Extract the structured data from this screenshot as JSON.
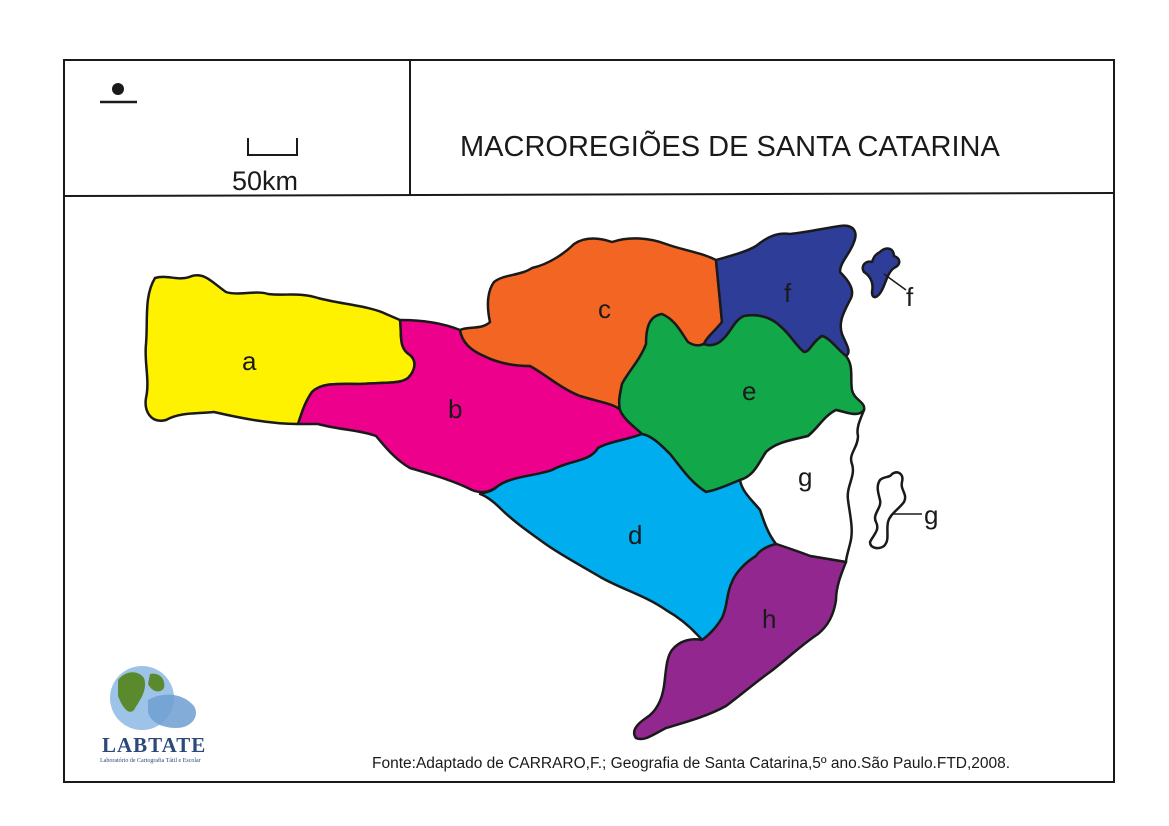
{
  "title": "MACROREGIÕES DE SANTA CATARINA",
  "scale": {
    "label": "50km"
  },
  "north_symbol": "braille-north-dot",
  "source": "Fonte:Adaptado de CARRARO,F.; Geografia de Santa Catarina,5º ano.São Paulo.FTD,2008.",
  "logo": {
    "name": "LABTATE",
    "subtitle": "Laboratório de Cartografia Tátil e Escolar"
  },
  "regions": [
    {
      "id": "a",
      "label": "a",
      "color": "#fff200"
    },
    {
      "id": "b",
      "label": "b",
      "color": "#ec008c"
    },
    {
      "id": "c",
      "label": "c",
      "color": "#f26522"
    },
    {
      "id": "d",
      "label": "d",
      "color": "#00aeef"
    },
    {
      "id": "e",
      "label": "e",
      "color": "#12a84a"
    },
    {
      "id": "f",
      "label": "f",
      "color": "#2e3d98"
    },
    {
      "id": "g",
      "label": "g",
      "color": "#ffffff"
    },
    {
      "id": "h",
      "label": "h",
      "color": "#92278f"
    }
  ],
  "island_labels": {
    "f": "f",
    "g": "g"
  }
}
